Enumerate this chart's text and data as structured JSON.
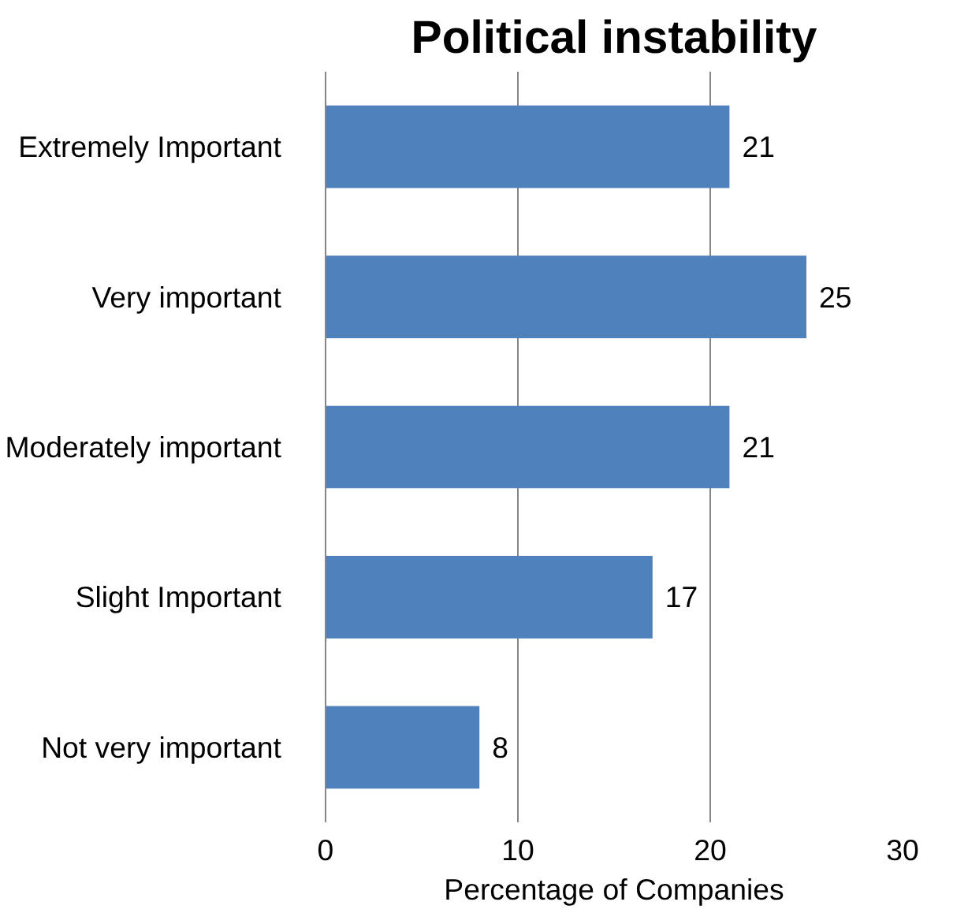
{
  "chart_data": {
    "type": "bar",
    "orientation": "horizontal",
    "title": "Political instability",
    "xlabel": "Percentage of Companies",
    "categories": [
      "Extremely Important",
      "Very important",
      "Moderately important",
      "Slight Important",
      "Not very important"
    ],
    "values": [
      21,
      25,
      21,
      17,
      8
    ],
    "color": "#4f81bd",
    "xlim": [
      0,
      30
    ],
    "xticks": [
      0,
      10,
      20,
      30
    ],
    "grid": "x",
    "data_labels": true
  }
}
